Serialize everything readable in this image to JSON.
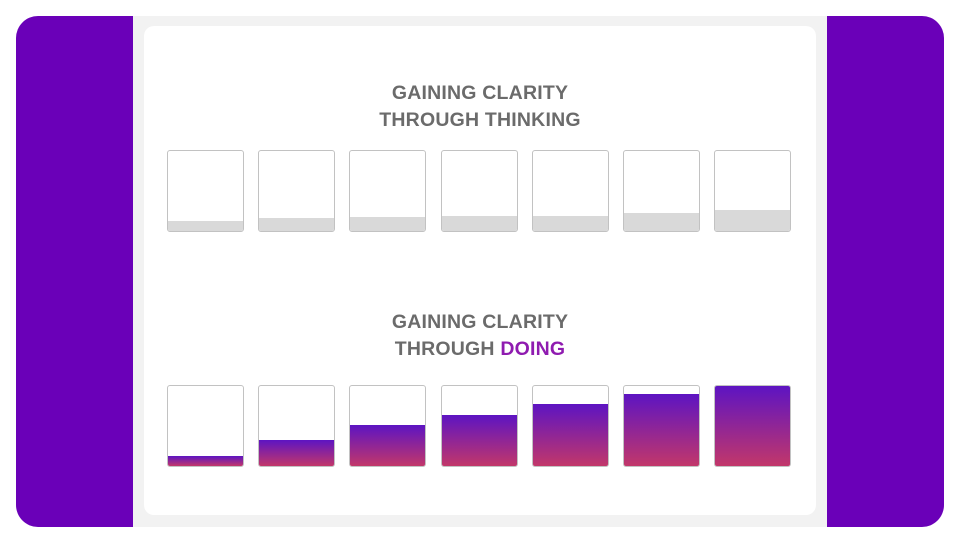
{
  "section_thinking": {
    "title_line1": "GAINING CLARITY",
    "title_line2": "THROUGH THINKING",
    "levels": [
      0.13,
      0.16,
      0.18,
      0.19,
      0.19,
      0.22,
      0.26
    ]
  },
  "section_doing": {
    "title_line1": "GAINING CLARITY",
    "title_line2_prefix": "THROUGH ",
    "title_line2_accent": "DOING",
    "levels": [
      0.13,
      0.32,
      0.51,
      0.64,
      0.77,
      0.9,
      1.0
    ]
  },
  "colors": {
    "frame": "#6a00b8",
    "heading_text": "#6b6b6b",
    "accent_text": "#8f1bb0",
    "thinking_fill": "#d9d9d9",
    "doing_fill_top": "#5d14c2",
    "doing_fill_bottom": "#c2376a"
  }
}
